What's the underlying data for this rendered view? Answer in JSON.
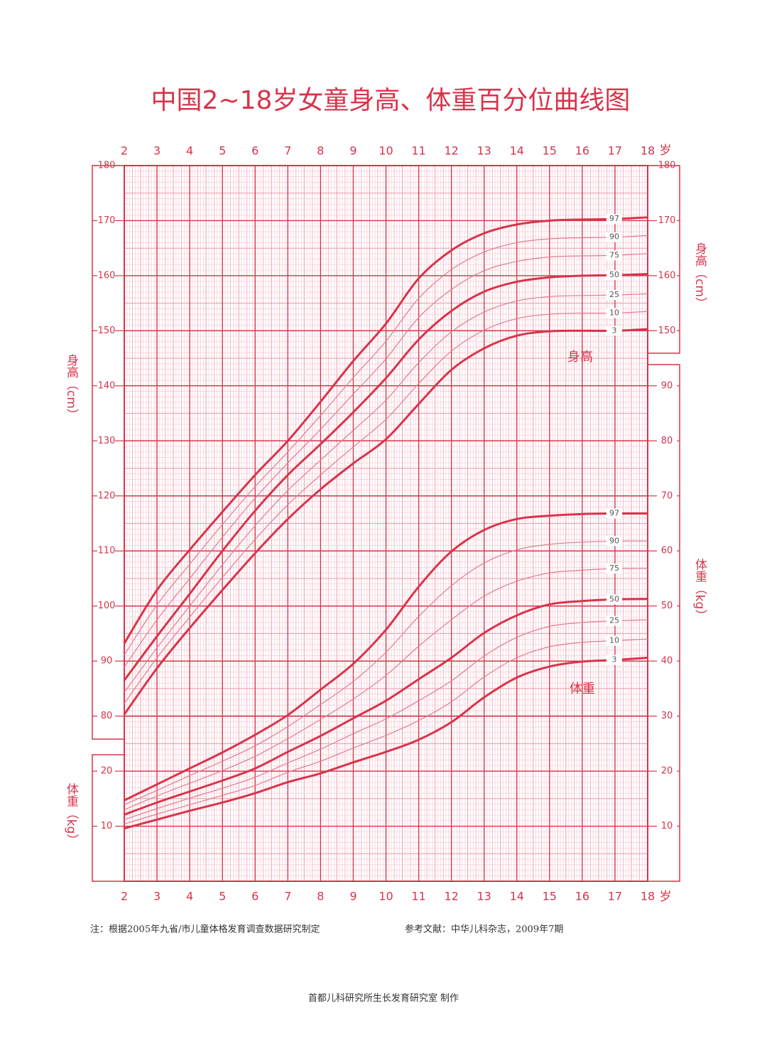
{
  "chart_data": {
    "type": "line",
    "title": "中国2~18岁女童身高、体重百分位曲线图",
    "xlabel": "岁",
    "ylabel": "身高（cm）",
    "y2label": "体重（kg）",
    "x": [
      2,
      3,
      4,
      5,
      6,
      7,
      8,
      9,
      10,
      11,
      12,
      13,
      14,
      15,
      16,
      17,
      18
    ],
    "xlim": [
      2,
      18
    ],
    "xticks": [
      2,
      3,
      4,
      5,
      6,
      7,
      8,
      9,
      10,
      11,
      12,
      13,
      14,
      15,
      16,
      17,
      18
    ],
    "ylim": [
      50,
      180
    ],
    "yticks": [
      80,
      90,
      100,
      110,
      120,
      130,
      140,
      150,
      160,
      170,
      180
    ],
    "y2lim": [
      0,
      130
    ],
    "y2ticks": [
      10,
      20,
      30,
      40,
      50,
      60,
      70,
      80,
      90
    ],
    "grid": true,
    "annotations": [
      "身高",
      "体重"
    ],
    "notes": [
      "注：根据2005年九省/市儿童体格发育调查数据研究制定",
      "参考文献：中华儿科杂志，2009年7期",
      "首都儿科研究所生长发育研究室 制作"
    ],
    "series": [
      {
        "name": "3",
        "color": "#d8344c",
        "line_width": 3,
        "values": [
          80.3,
          88.7,
          96.0,
          102.9,
          109.6,
          115.8,
          121.2,
          125.9,
          130.3,
          136.7,
          142.9,
          146.8,
          149.1,
          149.9,
          150.0,
          150.0,
          150.3
        ]
      },
      {
        "name": "10",
        "color": "#e27b92",
        "line_width": 1.2,
        "values": [
          82.3,
          90.6,
          98.0,
          105.2,
          112.1,
          118.4,
          123.8,
          128.9,
          133.9,
          140.4,
          146.3,
          150.1,
          152.2,
          153.0,
          153.2,
          153.2,
          153.5
        ]
      },
      {
        "name": "25",
        "color": "#e27b92",
        "line_width": 1.2,
        "values": [
          84.3,
          92.4,
          100.0,
          107.5,
          114.6,
          121.0,
          126.5,
          131.9,
          137.4,
          144.2,
          149.8,
          153.4,
          155.4,
          156.2,
          156.4,
          156.5,
          156.7
        ]
      },
      {
        "name": "50",
        "color": "#d8344c",
        "line_width": 3,
        "values": [
          86.5,
          94.5,
          102.2,
          110.0,
          117.3,
          123.8,
          129.4,
          135.2,
          141.4,
          148.4,
          153.6,
          157.1,
          158.9,
          159.7,
          160.0,
          160.1,
          160.3
        ]
      },
      {
        "name": "75",
        "color": "#e27b92",
        "line_width": 1.2,
        "values": [
          88.9,
          97.5,
          105.0,
          112.5,
          119.6,
          126.0,
          132.1,
          138.5,
          144.9,
          152.4,
          157.5,
          160.9,
          162.6,
          163.4,
          163.6,
          163.7,
          164.0
        ]
      },
      {
        "name": "90",
        "color": "#e27b92",
        "line_width": 1.2,
        "values": [
          91.1,
          100.2,
          107.6,
          114.8,
          121.7,
          128.0,
          134.6,
          141.5,
          148.1,
          155.9,
          161.1,
          164.3,
          166.0,
          166.7,
          166.9,
          167.0,
          167.3
        ]
      },
      {
        "name": "97",
        "color": "#d8344c",
        "line_width": 3,
        "values": [
          93.2,
          102.9,
          110.2,
          117.1,
          123.8,
          130.0,
          137.1,
          144.5,
          151.3,
          159.5,
          164.6,
          167.7,
          169.3,
          170.0,
          170.2,
          170.3,
          170.6
        ]
      },
      {
        "name": "3",
        "axis": "y2",
        "color": "#d8344c",
        "line_width": 3,
        "values": [
          9.6,
          11.2,
          12.8,
          14.3,
          16.0,
          18.0,
          19.6,
          21.6,
          23.5,
          25.7,
          28.9,
          33.4,
          37.0,
          39.0,
          39.9,
          40.2,
          40.6
        ]
      },
      {
        "name": "10",
        "axis": "y2",
        "color": "#e27b92",
        "line_width": 1.2,
        "values": [
          10.4,
          12.2,
          13.9,
          15.6,
          17.4,
          19.8,
          21.8,
          24.2,
          26.5,
          29.2,
          32.6,
          37.1,
          40.6,
          42.6,
          43.4,
          43.7,
          44.0
        ]
      },
      {
        "name": "25",
        "axis": "y2",
        "color": "#e27b92",
        "line_width": 1.2,
        "values": [
          11.2,
          13.2,
          15.1,
          16.9,
          18.9,
          21.5,
          24.0,
          26.8,
          29.5,
          32.8,
          36.4,
          40.9,
          44.3,
          46.3,
          47.0,
          47.3,
          47.5
        ]
      },
      {
        "name": "50",
        "axis": "y2",
        "color": "#d8344c",
        "line_width": 3,
        "values": [
          12.1,
          14.3,
          16.3,
          18.3,
          20.5,
          23.5,
          26.4,
          29.6,
          32.8,
          36.7,
          40.6,
          45.1,
          48.3,
          50.3,
          50.9,
          51.2,
          51.3
        ]
      },
      {
        "name": "75",
        "axis": "y2",
        "color": "#e27b92",
        "line_width": 1.2,
        "values": [
          13.0,
          15.5,
          17.8,
          20.1,
          22.7,
          25.9,
          29.4,
          33.1,
          37.4,
          42.7,
          47.5,
          51.8,
          54.5,
          56.0,
          56.5,
          56.8,
          56.8
        ]
      },
      {
        "name": "90",
        "axis": "y2",
        "color": "#e27b92",
        "line_width": 1.2,
        "values": [
          13.9,
          16.5,
          19.2,
          21.8,
          24.6,
          28.1,
          32.1,
          36.3,
          41.6,
          48.1,
          53.7,
          57.8,
          60.2,
          61.2,
          61.6,
          61.8,
          61.8
        ]
      },
      {
        "name": "97",
        "axis": "y2",
        "color": "#d8344c",
        "line_width": 3,
        "values": [
          14.7,
          17.6,
          20.5,
          23.4,
          26.6,
          30.2,
          34.8,
          39.5,
          45.7,
          53.5,
          59.9,
          63.8,
          65.8,
          66.4,
          66.7,
          66.8,
          66.8
        ]
      }
    ]
  }
}
